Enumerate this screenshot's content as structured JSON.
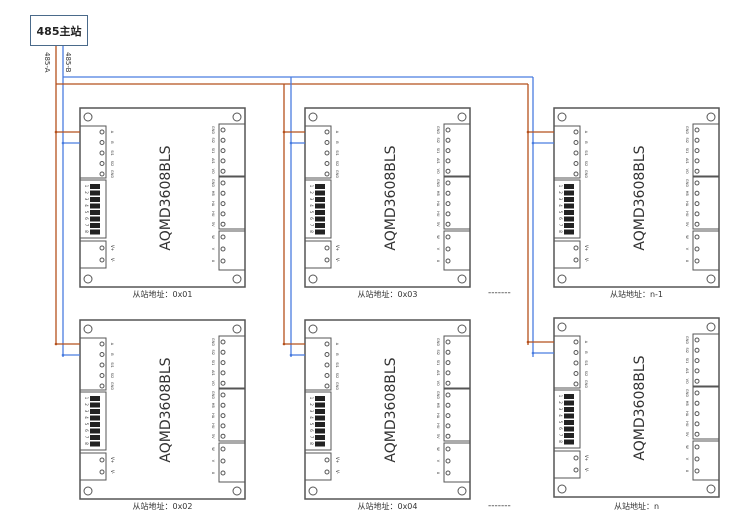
{
  "master": {
    "label": "485主站"
  },
  "wires": {
    "a_label": "485-A",
    "b_label": "485-B",
    "a_color": "#b5501c",
    "b_color": "#4a7de0"
  },
  "board": {
    "model": "AQMD3608BLS",
    "rs485_pins": [
      "A",
      "B",
      "SI1",
      "SI2",
      "GND"
    ],
    "dip_numbers": [
      "1",
      "2",
      "3",
      "4",
      "5",
      "6",
      "7",
      "8"
    ],
    "power_pins": [
      "V+",
      "V-"
    ],
    "right_pins_1": [
      "GND",
      "SI2",
      "SI1",
      "AI1",
      "VO"
    ],
    "right_pins_2": [
      "GND",
      "HB",
      "HA",
      "HU",
      "5V"
    ],
    "motor_pins": [
      "W",
      "V",
      "U"
    ]
  },
  "slaves": [
    {
      "address": "从站地址：0x01"
    },
    {
      "address": "从站地址：0x02"
    },
    {
      "address": "从站地址：0x03"
    },
    {
      "address": "从站地址：0x04"
    },
    {
      "address": "从站地址：n-1"
    },
    {
      "address": "从站地址：n"
    }
  ],
  "ellipsis": "-------"
}
